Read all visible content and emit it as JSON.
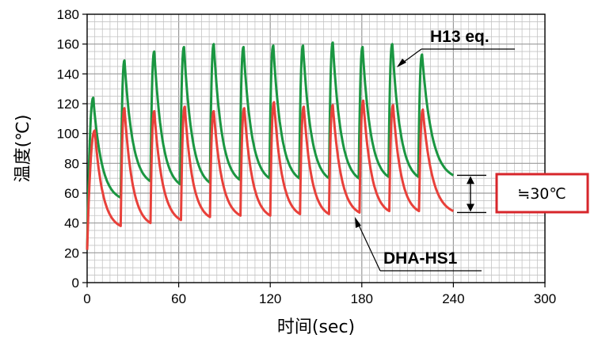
{
  "chart_data": {
    "type": "line",
    "title": "",
    "xlabel": "时间(sec)",
    "ylabel": "温度(℃)",
    "xlim": [
      0,
      300
    ],
    "ylim": [
      0,
      180
    ],
    "x_ticks": [
      "0",
      "60",
      "120",
      "180",
      "240",
      "300"
    ],
    "y_ticks": [
      "0",
      "20",
      "40",
      "60",
      "80",
      "100",
      "120",
      "140",
      "160",
      "180"
    ],
    "grid": true,
    "colors": {
      "H13 eq.": "#1a9641",
      "DHA-HS1": "#e8403a",
      "annotation_border": "#d7262b"
    },
    "cycle_period_sec": 19.5,
    "series": [
      {
        "name": "H13 eq.",
        "start": [
          0,
          22
        ],
        "peak_times": [
          4,
          24.5,
          44,
          63.5,
          83,
          102.5,
          122,
          141.5,
          161,
          180.5,
          200,
          219.5
        ],
        "peaks": [
          124,
          149,
          155,
          158,
          160,
          158,
          159,
          159,
          161,
          158,
          160,
          153
        ],
        "troughs": [
          57,
          68,
          66,
          67,
          69,
          70,
          70,
          70,
          70,
          71,
          71,
          72
        ],
        "end_x": 240
      },
      {
        "name": "DHA-HS1",
        "start": [
          0,
          22
        ],
        "peak_times": [
          5,
          24.5,
          44,
          64,
          83,
          103,
          122.5,
          142,
          161,
          181,
          200.5,
          220
        ],
        "peaks": [
          102,
          117,
          115,
          118,
          115,
          117,
          121,
          118,
          119,
          122,
          119,
          116
        ],
        "troughs": [
          38,
          40,
          42,
          44,
          45,
          45,
          46,
          46,
          47,
          48,
          48,
          48
        ],
        "end_x": 240
      }
    ],
    "annotation": {
      "text": "≒30℃",
      "y_top": 72,
      "y_bottom": 47
    }
  }
}
